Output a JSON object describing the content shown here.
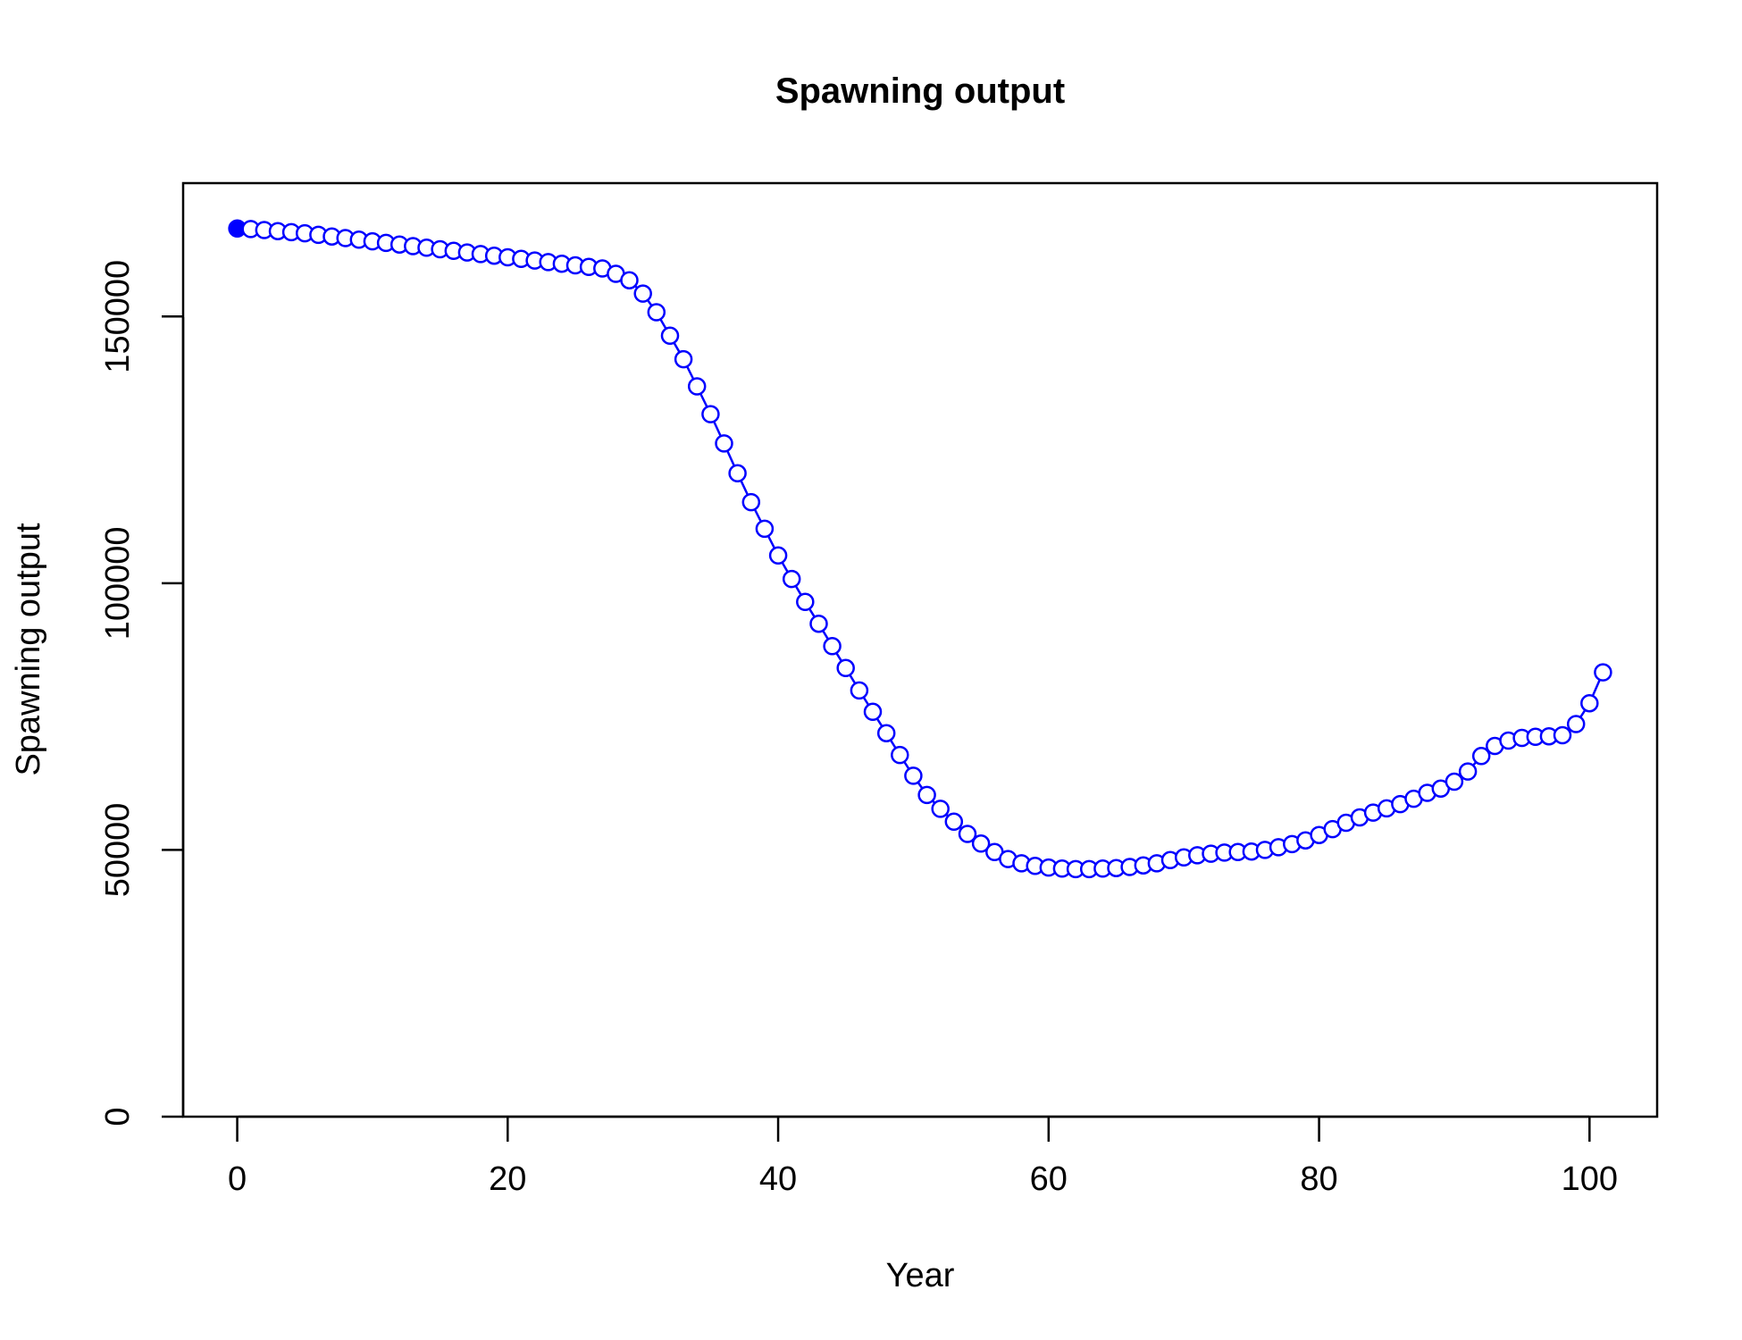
{
  "chart_data": {
    "type": "line",
    "title": "Spawning output",
    "xlabel": "Year",
    "ylabel": "Spawning output",
    "xlim": [
      -4,
      105
    ],
    "ylim": [
      0,
      175000
    ],
    "xticks": [
      0,
      20,
      40,
      60,
      80,
      100
    ],
    "yticks": [
      0,
      50000,
      100000,
      150000
    ],
    "grid": false,
    "legend": "none",
    "colors": {
      "series": "#0000ff",
      "axis": "#000000"
    },
    "series": [
      {
        "x": [
          0,
          1,
          2,
          3,
          4,
          5,
          6,
          7,
          8,
          9,
          10,
          11,
          12,
          13,
          14,
          15,
          16,
          17,
          18,
          19,
          20,
          21,
          22,
          23,
          24,
          25,
          26,
          27,
          28,
          29,
          30,
          31,
          32,
          33,
          34,
          35,
          36,
          37,
          38,
          39,
          40,
          41,
          42,
          43,
          44,
          45,
          46,
          47,
          48,
          49,
          50,
          51,
          52,
          53,
          54,
          55,
          56,
          57,
          58,
          59,
          60,
          61,
          62,
          63,
          64,
          65,
          66,
          67,
          68,
          69,
          70,
          71,
          72,
          73,
          74,
          75,
          76,
          77,
          78,
          79,
          80,
          81,
          82,
          83,
          84,
          85,
          86,
          87,
          88,
          89,
          90,
          91,
          92,
          93,
          94,
          95,
          96,
          97,
          98,
          99,
          100,
          101
        ],
        "values": [
          166500,
          166400,
          166200,
          166000,
          165800,
          165600,
          165300,
          165000,
          164700,
          164400,
          164100,
          163800,
          163500,
          163200,
          162900,
          162600,
          162300,
          162000,
          161700,
          161400,
          161100,
          160800,
          160500,
          160200,
          159900,
          159600,
          159300,
          159000,
          158000,
          156800,
          154300,
          150800,
          146400,
          142000,
          136900,
          131700,
          126200,
          120600,
          115200,
          110200,
          105200,
          100800,
          96500,
          92400,
          88200,
          84100,
          79900,
          75900,
          71900,
          67800,
          63900,
          60300,
          57700,
          55300,
          53000,
          51200,
          49600,
          48300,
          47500,
          47000,
          46700,
          46500,
          46400,
          46400,
          46500,
          46600,
          46800,
          47100,
          47500,
          48100,
          48600,
          49000,
          49300,
          49500,
          49600,
          49700,
          50000,
          50500,
          51100,
          51800,
          52800,
          53900,
          55100,
          56100,
          57000,
          57800,
          58600,
          59600,
          60700,
          61500,
          62800,
          64700,
          67600,
          69500,
          70500,
          71000,
          71200,
          71300,
          71500,
          73600,
          77500,
          83300
        ],
        "marker": "open-circle",
        "first_marker": "filled-circle"
      }
    ]
  }
}
